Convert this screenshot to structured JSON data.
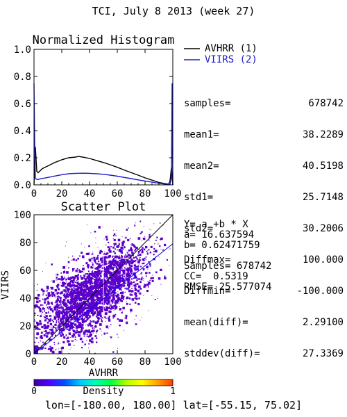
{
  "page": {
    "title": "TCI,  July 8 2013 (week 27)",
    "bounds": "lon=[-180.00, 180.00] lat=[-55.15, 75.02]"
  },
  "colors": {
    "avhrr": "#000000",
    "viirs": "#1c1cc8",
    "scatter_dense": "#5a00c8",
    "scatter_sparse": "#7a00ff",
    "fit_line": "#0000ff",
    "colorbar": [
      "#3c00a0",
      "#5000ff",
      "#0050ff",
      "#00c8ff",
      "#00ffb4",
      "#00ff3c",
      "#b4ff00",
      "#ffff00",
      "#ffa000",
      "#ff3c00"
    ]
  },
  "stats": [
    {
      "label": "samples=",
      "value": "678742"
    },
    {
      "label": "mean1=",
      "value": "38.2289"
    },
    {
      "label": "mean2=",
      "value": "40.5198"
    },
    {
      "label": "std1=",
      "value": "25.7148"
    },
    {
      "label": "std2=",
      "value": "30.2006"
    },
    {
      "label": "Diffmax=",
      "value": "100.000"
    },
    {
      "label": "Diffmin=",
      "value": "-100.000"
    },
    {
      "label": "mean(diff)=",
      "value": "2.29100"
    },
    {
      "label": "stddev(diff)=",
      "value": "27.3369"
    }
  ],
  "scatter_text": {
    "equation": "Y= a +b * X",
    "a": "a= 16.637594",
    "b": "b= 0.62471759",
    "samples": "Samples= 678742",
    "cc": "CC=  0.5319",
    "rmse": "RMSE= 25.577074"
  },
  "colorbar": {
    "label": "Density",
    "min_label": "0",
    "max_label": "1"
  },
  "chart_data": [
    {
      "type": "line",
      "title": "Normalized Histogram",
      "xlabel": "",
      "ylabel": "",
      "xlim": [
        0,
        100
      ],
      "ylim": [
        0,
        1
      ],
      "xticks": [
        "0",
        "20",
        "40",
        "60",
        "80",
        "100"
      ],
      "yticks": [
        "0.0",
        "0.2",
        "0.4",
        "0.6",
        "0.8",
        "1.0"
      ],
      "legend_position": "right",
      "series": [
        {
          "name": "AVHRR (1)",
          "x": [
            0,
            1,
            2,
            3,
            4,
            6,
            10,
            15,
            20,
            25,
            30,
            32,
            35,
            40,
            45,
            50,
            55,
            60,
            65,
            70,
            75,
            80,
            85,
            90,
            95,
            97,
            98,
            99,
            100
          ],
          "y": [
            0.0,
            0.28,
            0.1,
            0.09,
            0.1,
            0.12,
            0.14,
            0.165,
            0.185,
            0.2,
            0.205,
            0.21,
            0.205,
            0.195,
            0.18,
            0.165,
            0.148,
            0.13,
            0.11,
            0.09,
            0.072,
            0.052,
            0.035,
            0.018,
            0.008,
            0.005,
            0.03,
            0.13,
            0.0
          ]
        },
        {
          "name": "VIIRS (2)",
          "x": [
            0,
            0.5,
            1,
            2,
            3,
            5,
            10,
            15,
            20,
            25,
            30,
            35,
            40,
            45,
            50,
            55,
            60,
            65,
            70,
            75,
            80,
            85,
            90,
            95,
            98,
            99,
            99.5,
            100
          ],
          "y": [
            0.75,
            0.3,
            0.05,
            0.04,
            0.04,
            0.045,
            0.055,
            0.065,
            0.075,
            0.082,
            0.085,
            0.086,
            0.085,
            0.082,
            0.078,
            0.072,
            0.064,
            0.055,
            0.046,
            0.037,
            0.028,
            0.02,
            0.012,
            0.005,
            0.004,
            0.05,
            0.75,
            0.0
          ]
        }
      ]
    },
    {
      "type": "scatter",
      "title": "Scatter Plot",
      "xlabel": "AVHRR",
      "ylabel": "VIIRS",
      "xlim": [
        0,
        100
      ],
      "ylim": [
        0,
        100
      ],
      "xticks": [
        "0",
        "20",
        "40",
        "60",
        "80",
        "100"
      ],
      "yticks": [
        "0",
        "20",
        "40",
        "60",
        "80",
        "100"
      ],
      "fit": {
        "a": 16.637594,
        "b": 0.62471759
      },
      "one_to_one_line": true
    }
  ]
}
